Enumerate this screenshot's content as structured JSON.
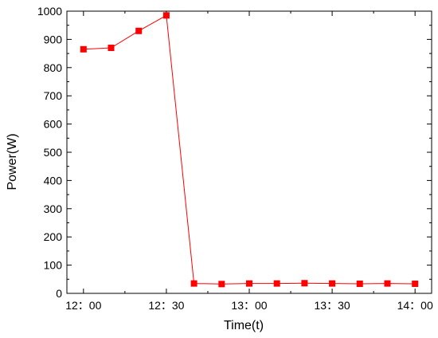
{
  "chart_data": {
    "type": "line",
    "title": "",
    "xlabel": "Time(t)",
    "ylabel": "Power(W)",
    "ylim": [
      0,
      1000
    ],
    "yticks": [
      0,
      100,
      200,
      300,
      400,
      500,
      600,
      700,
      800,
      900,
      1000
    ],
    "xlim": [
      -0.05,
      1.05
    ],
    "xticks": [
      {
        "pos": 0.0,
        "label": "12：00"
      },
      {
        "pos": 0.25,
        "label": "12：30"
      },
      {
        "pos": 0.5,
        "label": "13：00"
      },
      {
        "pos": 0.75,
        "label": "13：30"
      },
      {
        "pos": 1.0,
        "label": "14：00"
      }
    ],
    "grid": false,
    "legend": "none",
    "series": [
      {
        "color": "#ff0000",
        "x": [
          0.0,
          0.0833,
          0.1667,
          0.25,
          0.3333,
          0.4167,
          0.5,
          0.5833,
          0.6667,
          0.75,
          0.8333,
          0.9167,
          1.0
        ],
        "y": [
          865,
          870,
          930,
          985,
          35,
          33,
          35,
          35,
          36,
          35,
          34,
          35,
          34
        ]
      }
    ]
  }
}
